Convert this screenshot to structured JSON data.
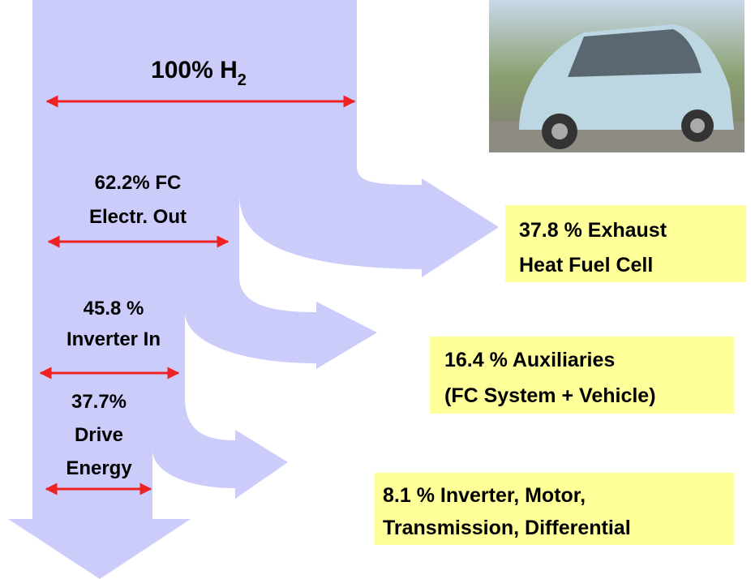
{
  "header": {
    "label": {
      "text": "100% H",
      "subscript": "2"
    }
  },
  "stages": [
    {
      "lines": [
        "62.2% FC",
        "Electr. Out"
      ]
    },
    {
      "lines": [
        "45.8 %",
        "Inverter In"
      ]
    },
    {
      "lines": [
        "37.7%",
        "Drive",
        "Energy"
      ]
    }
  ],
  "losses": [
    {
      "lines": [
        "37.8 % Exhaust",
        "Heat Fuel Cell"
      ]
    },
    {
      "lines": [
        "16.4 % Auxiliaries",
        "(FC System + Vehicle)"
      ]
    },
    {
      "lines": [
        "8.1 % Inverter, Motor,",
        "Transmission, Differential"
      ]
    }
  ]
}
